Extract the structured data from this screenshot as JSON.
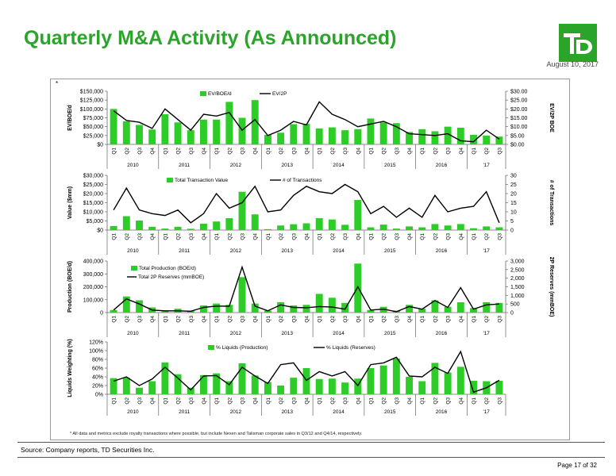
{
  "header": {
    "title": "Quarterly M&A Activity (As Announced)",
    "date": "August 10, 2017",
    "logo_text": "TD"
  },
  "colors": {
    "brand_green": "#2aa52a",
    "bar_green": "#2ecc28",
    "line": "#000000"
  },
  "footer": {
    "footnote": "* All data and metrics exclude royalty transactions where possible, but include Nexen and Talisman corporate sales in Q3/12 and Q4/14, respectively.",
    "source": "Source: Company reports, TD Securities Inc.",
    "page": "Page 17 of 32",
    "mark": "*"
  },
  "chart_data": [
    {
      "type": "bar",
      "categories": [
        "Q1",
        "Q2",
        "Q3",
        "Q4",
        "Q1",
        "Q2",
        "Q3",
        "Q4",
        "Q1",
        "Q2",
        "Q3",
        "Q4",
        "Q1",
        "Q2",
        "Q3",
        "Q4",
        "Q1",
        "Q2",
        "Q3",
        "Q4",
        "Q1",
        "Q2",
        "Q3",
        "Q4",
        "Q1",
        "Q2",
        "Q3",
        "Q4",
        "Q1",
        "Q2",
        "Q3"
      ],
      "year_labels": [
        "2010",
        "2011",
        "2012",
        "2013",
        "2014",
        "2015",
        "2016",
        "'17"
      ],
      "ylabel": "EV/BOE/d",
      "y2label": "EV/2P BOE",
      "ylim": [
        0,
        150000
      ],
      "y_ticks": [
        "$0",
        "$25,000",
        "$50,000",
        "$75,000",
        "$100,000",
        "$125,000",
        "$150,000"
      ],
      "y2lim": [
        0,
        30
      ],
      "y2_ticks": [
        "$0.00",
        "$5.00",
        "$10.00",
        "$15.00",
        "$20.00",
        "$25.00",
        "$30.00"
      ],
      "series": [
        {
          "name": "EV/BOE/d",
          "kind": "bar",
          "axis": "left",
          "values": [
            100000,
            65000,
            55000,
            42000,
            85000,
            62000,
            40000,
            70000,
            70000,
            120000,
            75000,
            125000,
            27000,
            33000,
            57000,
            58000,
            45000,
            48000,
            40000,
            43000,
            73000,
            62000,
            60000,
            35000,
            43000,
            37000,
            50000,
            47000,
            27000,
            25000,
            22000
          ]
        },
        {
          "name": "EV/2P",
          "kind": "line",
          "axis": "right",
          "values": [
            19,
            13.5,
            12.5,
            9,
            20,
            14,
            8,
            17,
            16,
            18,
            8,
            14,
            5,
            8,
            13,
            11,
            24,
            17,
            14,
            10,
            11.5,
            13,
            10,
            6,
            5.5,
            5,
            6,
            2,
            1.5,
            8,
            3
          ]
        }
      ]
    },
    {
      "type": "bar",
      "categories": [
        "Q1",
        "Q2",
        "Q3",
        "Q4",
        "Q1",
        "Q2",
        "Q3",
        "Q4",
        "Q1",
        "Q2",
        "Q3",
        "Q4",
        "Q1",
        "Q2",
        "Q3",
        "Q4",
        "Q1",
        "Q2",
        "Q3",
        "Q4",
        "Q1",
        "Q2",
        "Q3",
        "Q4",
        "Q1",
        "Q2",
        "Q3",
        "Q4",
        "Q1",
        "Q2",
        "Q3"
      ],
      "year_labels": [
        "2010",
        "2011",
        "2012",
        "2013",
        "2014",
        "2015",
        "2016",
        "'17"
      ],
      "ylabel": "Value ($mm)",
      "y2label": "# of Transactions",
      "ylim": [
        0,
        30000
      ],
      "y_ticks": [
        "$0",
        "$5,000",
        "$10,000",
        "$15,000",
        "$20,000",
        "$25,000",
        "$30,000"
      ],
      "y2lim": [
        0,
        30
      ],
      "y2_ticks": [
        "0",
        "5",
        "10",
        "15",
        "20",
        "25",
        "30"
      ],
      "series": [
        {
          "name": "Total Transaction Value",
          "kind": "bar",
          "axis": "left",
          "values": [
            2200,
            7600,
            5200,
            1800,
            800,
            1800,
            700,
            3500,
            4700,
            6500,
            21000,
            8600,
            500,
            2500,
            3200,
            3700,
            6500,
            5800,
            2900,
            16500,
            1500,
            3000,
            800,
            2000,
            1500,
            3300,
            2500,
            3300,
            1000,
            2000,
            1500
          ]
        },
        {
          "name": "# of Transactions",
          "kind": "line",
          "axis": "right",
          "values": [
            11,
            23,
            11,
            9,
            8,
            11,
            4,
            9,
            20,
            12,
            15,
            24,
            10,
            11,
            19,
            24,
            21,
            20,
            25,
            21,
            9,
            13,
            7,
            12,
            7,
            19,
            10,
            12,
            13,
            21,
            4
          ]
        }
      ]
    },
    {
      "type": "bar",
      "categories": [
        "Q1",
        "Q2",
        "Q3",
        "Q4",
        "Q1",
        "Q2",
        "Q3",
        "Q4",
        "Q1",
        "Q2",
        "Q3",
        "Q4",
        "Q1",
        "Q2",
        "Q3",
        "Q4",
        "Q1",
        "Q2",
        "Q3",
        "Q4",
        "Q1",
        "Q2",
        "Q3",
        "Q4",
        "Q1",
        "Q2",
        "Q3",
        "Q4",
        "Q1",
        "Q2",
        "Q3"
      ],
      "year_labels": [
        "2010",
        "2011",
        "2012",
        "2013",
        "2014",
        "2015",
        "2016",
        "'17"
      ],
      "ylabel": "Production (BOE/d)",
      "y2label": "2P Reserves (mmBOE)",
      "ylim": [
        0,
        400000
      ],
      "y_ticks": [
        "0",
        "100,000",
        "200,000",
        "300,000",
        "400,000"
      ],
      "y2lim": [
        0,
        3000
      ],
      "y2_ticks": [
        "0",
        "500",
        "1,000",
        "1,500",
        "2,000",
        "2,500",
        "3,000"
      ],
      "series": [
        {
          "name": "Total Production (BOE/d)",
          "kind": "bar",
          "axis": "left",
          "values": [
            20000,
            125000,
            95000,
            40000,
            10000,
            30000,
            15000,
            55000,
            70000,
            60000,
            275000,
            70000,
            15000,
            80000,
            55000,
            60000,
            145000,
            115000,
            75000,
            380000,
            20000,
            45000,
            15000,
            60000,
            30000,
            95000,
            45000,
            80000,
            35000,
            80000,
            75000
          ]
        },
        {
          "name": "Total 2P Reserves (mmBOE)",
          "kind": "line",
          "axis": "right",
          "values": [
            150,
            800,
            500,
            150,
            100,
            100,
            80,
            300,
            380,
            370,
            2650,
            380,
            100,
            450,
            300,
            280,
            350,
            320,
            200,
            1500,
            150,
            200,
            50,
            350,
            200,
            700,
            300,
            1450,
            200,
            450,
            500
          ]
        }
      ]
    },
    {
      "type": "bar",
      "categories": [
        "Q1",
        "Q2",
        "Q3",
        "Q4",
        "Q1",
        "Q2",
        "Q3",
        "Q4",
        "Q1",
        "Q2",
        "Q3",
        "Q4",
        "Q1",
        "Q2",
        "Q3",
        "Q4",
        "Q1",
        "Q2",
        "Q3",
        "Q4",
        "Q1",
        "Q2",
        "Q3",
        "Q4",
        "Q1",
        "Q2",
        "Q3",
        "Q4",
        "Q1",
        "Q2",
        "Q3"
      ],
      "year_labels": [
        "2010",
        "2011",
        "2012",
        "2013",
        "2014",
        "2015",
        "2016",
        "'17"
      ],
      "ylabel": "Liquids Weighting (%)",
      "ylim": [
        0,
        120
      ],
      "y_ticks": [
        "0%",
        "20%",
        "40%",
        "60%",
        "80%",
        "100%",
        "120%"
      ],
      "series": [
        {
          "name": "% Liquids (Production)",
          "kind": "bar",
          "axis": "left",
          "values": [
            37,
            38,
            15,
            30,
            73,
            46,
            15,
            44,
            48,
            30,
            71,
            43,
            28,
            20,
            38,
            60,
            35,
            36,
            27,
            36,
            60,
            66,
            82,
            40,
            30,
            72,
            50,
            63,
            31,
            30,
            31
          ]
        },
        {
          "name": "% Liquids (Reserves)",
          "kind": "line",
          "axis": "left",
          "values": [
            30,
            40,
            20,
            35,
            62,
            37,
            10,
            42,
            43,
            22,
            62,
            42,
            25,
            68,
            72,
            32,
            52,
            42,
            52,
            20,
            68,
            72,
            85,
            42,
            40,
            62,
            48,
            98,
            5,
            15,
            32
          ]
        }
      ]
    }
  ]
}
